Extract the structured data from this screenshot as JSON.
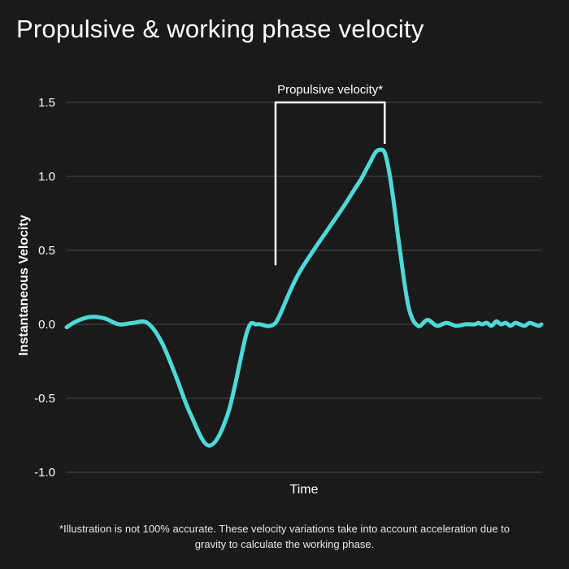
{
  "chart_data": {
    "type": "line",
    "title": "Propulsive & working phase velocity",
    "xlabel": "Time",
    "ylabel": "Instantaneous Velocity",
    "ylim": [
      -1.0,
      1.5
    ],
    "yticks": [
      1.5,
      1.0,
      0.5,
      0.0,
      -0.5,
      -1.0
    ],
    "ytick_labels": [
      "1.5",
      "1.0",
      "0.5",
      "0.0",
      "-0.5",
      "-1.0"
    ],
    "grid": true,
    "series": [
      {
        "color": "#4fd8d8",
        "x": [
          0,
          2,
          5,
          8,
          11,
          14,
          17,
          20,
          23,
          26,
          30,
          34,
          38,
          40,
          42,
          43,
          44,
          45,
          47,
          49,
          52,
          55,
          58,
          60,
          61,
          62,
          63,
          64,
          65,
          66,
          67,
          68,
          69,
          70,
          72,
          74,
          76,
          78,
          80,
          82,
          84,
          86,
          86.7,
          87.5,
          88.5,
          89.5,
          90.5,
          91.5,
          92.5,
          93.5,
          94.5,
          95.5,
          96.5,
          97.5,
          98.5,
          99.5,
          100
        ],
        "y": [
          -0.02,
          0.02,
          0.05,
          0.04,
          0.0,
          0.01,
          0.01,
          -0.12,
          -0.35,
          -0.6,
          -0.82,
          -0.6,
          -0.05,
          0.0,
          -0.01,
          -0.01,
          0.01,
          0.07,
          0.22,
          0.35,
          0.5,
          0.64,
          0.78,
          0.88,
          0.93,
          0.98,
          1.04,
          1.1,
          1.16,
          1.18,
          1.16,
          1.02,
          0.8,
          0.55,
          0.12,
          -0.01,
          0.03,
          -0.01,
          0.01,
          -0.01,
          0.0,
          0.0,
          0.01,
          0.0,
          0.01,
          -0.01,
          0.02,
          0.0,
          0.01,
          -0.01,
          0.01,
          0.0,
          -0.01,
          0.01,
          0.0,
          -0.01,
          0.0
        ]
      }
    ],
    "annotations": [
      {
        "text": "Propulsive velocity*",
        "type": "bracket",
        "x_start": 44,
        "x_end": 67,
        "y_top": 1.5,
        "y_bottom_start": 0.4,
        "y_bottom_end": 1.22
      }
    ]
  },
  "footnote": "*Illustration is not 100% accurate. These  velocity variations  take into account acceleration due to gravity to calculate the working phase."
}
